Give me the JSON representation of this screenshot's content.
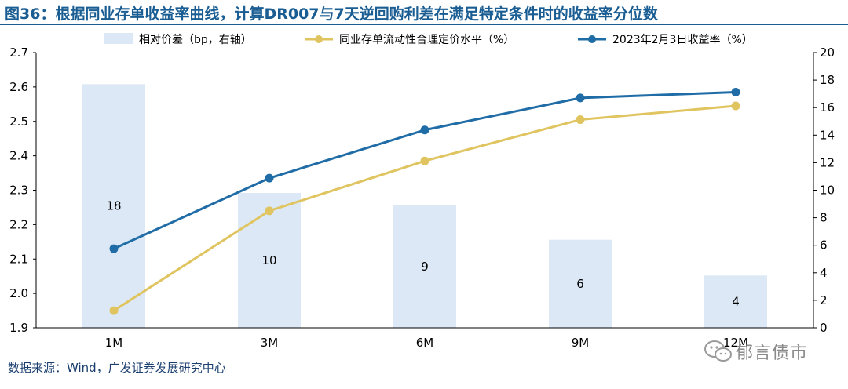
{
  "header": {
    "title": "图36：根据同业存单收益率曲线，计算DR007与7天逆回购利差在满足特定条件时的收益率分位数"
  },
  "footer": {
    "source": "数据来源：Wind，广发证券发展研究中心"
  },
  "watermark": {
    "text": "郁言债市"
  },
  "chart_data": {
    "type": "bar",
    "categories": [
      "1M",
      "3M",
      "6M",
      "9M",
      "12M"
    ],
    "series": [
      {
        "name": "相对价差（bp，右轴）",
        "type": "bar",
        "axis": "right",
        "values": [
          17.7,
          9.8,
          8.9,
          6.4,
          3.8
        ],
        "labels": [
          "18",
          "10",
          "9",
          "6",
          "4"
        ],
        "color": "#dce8f5"
      },
      {
        "name": "同业存单流动性合理定价水平（%）",
        "type": "line",
        "axis": "left",
        "values": [
          1.95,
          2.24,
          2.385,
          2.505,
          2.545
        ],
        "color": "#dfc460"
      },
      {
        "name": "2023年2月3日收益率（%）",
        "type": "line",
        "axis": "left",
        "values": [
          2.13,
          2.335,
          2.475,
          2.568,
          2.585
        ],
        "color": "#1f6ca6"
      }
    ],
    "y_left": {
      "min": 1.9,
      "max": 2.7,
      "ticks": [
        "1.9",
        "2.0",
        "2.1",
        "2.2",
        "2.3",
        "2.4",
        "2.5",
        "2.6",
        "2.7"
      ]
    },
    "y_right": {
      "min": 0,
      "max": 20,
      "ticks": [
        "0",
        "2",
        "4",
        "6",
        "8",
        "10",
        "12",
        "14",
        "16",
        "18",
        "20"
      ]
    },
    "legend_position": "top",
    "grid": false
  }
}
